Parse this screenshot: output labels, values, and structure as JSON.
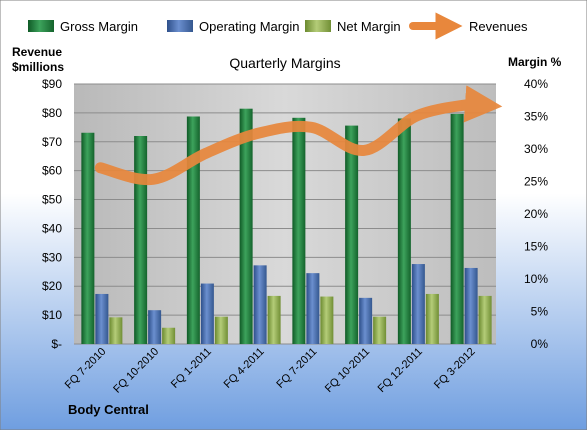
{
  "chart_data": {
    "type": "bar",
    "title": "Quarterly Margins",
    "ylabel_left_line1": "Revenue",
    "ylabel_left_line2": "$millions",
    "ylabel_right": "Margin %",
    "footer": "Body Central",
    "categories": [
      "FQ 7-2010",
      "FQ 10-2010",
      "FQ 1-2011",
      "FQ 4-2011",
      "FQ 7-2011",
      "FQ 10-2011",
      "FQ 12-2011",
      "FQ 3-2012"
    ],
    "y_left": {
      "min": 0,
      "max": 90,
      "ticks": [
        "$-",
        "$10",
        "$20",
        "$30",
        "$40",
        "$50",
        "$60",
        "$70",
        "$80",
        "$90"
      ]
    },
    "y_right": {
      "min": 0,
      "max": 40,
      "ticks": [
        "0%",
        "5%",
        "10%",
        "15%",
        "20%",
        "25%",
        "30%",
        "35%",
        "40%"
      ]
    },
    "series": [
      {
        "name": "Gross Margin",
        "axis": "right",
        "color": "#1e7b3c",
        "values": [
          32.5,
          32.0,
          35.0,
          36.2,
          34.8,
          33.6,
          34.7,
          35.4
        ]
      },
      {
        "name": "Operating Margin",
        "axis": "right",
        "color": "#4a6fae",
        "values": [
          7.7,
          5.2,
          9.3,
          12.1,
          10.9,
          7.1,
          12.3,
          11.7
        ]
      },
      {
        "name": "Net Margin",
        "axis": "right",
        "color": "#8aa84a",
        "values": [
          4.1,
          2.5,
          4.2,
          7.4,
          7.3,
          4.2,
          7.7,
          7.4
        ]
      },
      {
        "name": "Revenues",
        "axis": "left",
        "type": "line",
        "color": "#e8873c",
        "values": [
          61,
          57,
          66,
          73,
          75,
          67,
          79,
          83
        ]
      }
    ],
    "legend_position": "top",
    "grid": true,
    "colors": {
      "plot_bg": "#c8c8c8",
      "page_top": "#ffffff",
      "page_bottom": "#6f9ee0"
    }
  }
}
